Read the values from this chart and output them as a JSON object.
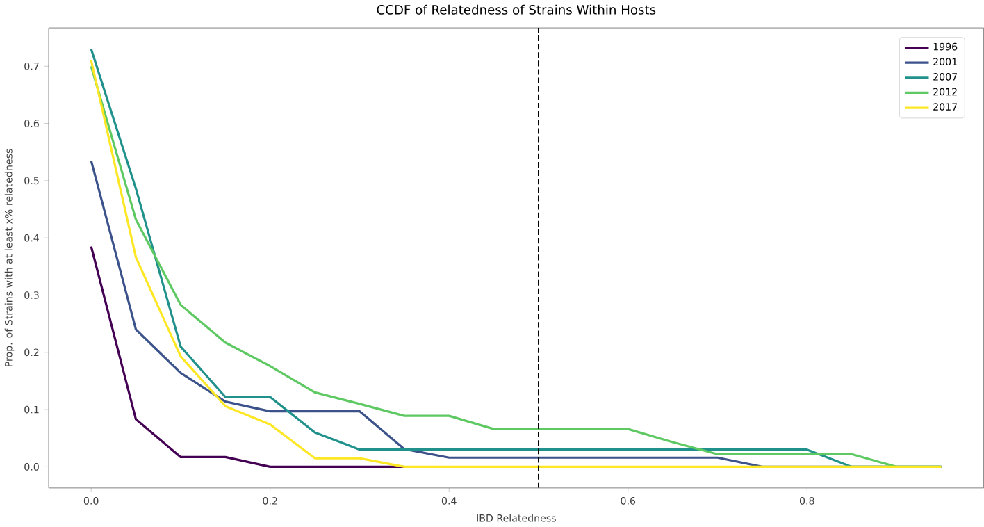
{
  "chart_data": {
    "type": "line",
    "title": "CCDF of Relatedness of Strains Within Hosts",
    "xlabel": "IBD Relatedness",
    "ylabel": "Prop. of Strains with at least x% relatedness",
    "x": [
      0,
      0.05,
      0.1,
      0.15,
      0.2,
      0.25,
      0.3,
      0.35,
      0.4,
      0.45,
      0.5,
      0.55,
      0.6,
      0.65,
      0.7,
      0.75,
      0.8,
      0.85,
      0.9,
      0.95
    ],
    "series": [
      {
        "name": "1996",
        "color": "#440154",
        "values": [
          0.385,
          0.083,
          0.017,
          0.017,
          0,
          0,
          0,
          0,
          null,
          null,
          null,
          null,
          null,
          null,
          null,
          null,
          null,
          null,
          null,
          null
        ]
      },
      {
        "name": "2001",
        "color": "#3b528b",
        "values": [
          0.535,
          0.24,
          0.164,
          0.114,
          0.097,
          0.097,
          0.097,
          0.031,
          0.016,
          0.016,
          0.016,
          0.016,
          0.016,
          0.016,
          0.016,
          0,
          0,
          0,
          0,
          0
        ]
      },
      {
        "name": "2007",
        "color": "#21918c",
        "values": [
          0.73,
          0.486,
          0.21,
          0.122,
          0.122,
          0.06,
          0.03,
          0.03,
          0.03,
          0.03,
          0.03,
          0.03,
          0.03,
          0.03,
          0.03,
          0.03,
          0.03,
          0,
          0,
          0
        ]
      },
      {
        "name": "2012",
        "color": "#5ec962",
        "values": [
          0.7,
          0.432,
          0.283,
          0.217,
          0.176,
          0.13,
          0.11,
          0.089,
          0.089,
          0.066,
          0.066,
          0.066,
          0.066,
          0.043,
          0.022,
          0.022,
          0.022,
          0.022,
          0,
          0
        ]
      },
      {
        "name": "2017",
        "color": "#fde725",
        "values": [
          0.71,
          0.366,
          0.193,
          0.106,
          0.074,
          0.015,
          0.015,
          0,
          0,
          0,
          0,
          0,
          0,
          0,
          0,
          0,
          0,
          0,
          0,
          0
        ]
      }
    ],
    "xlim": [
      -0.0475,
      0.9975
    ],
    "ylim": [
      -0.037,
      0.767
    ],
    "xticks": [
      {
        "value": 0,
        "label": "0.0"
      },
      0.2,
      0.4,
      0.6,
      0.8
    ],
    "yticks": [
      {
        "value": 0,
        "label": "0.0"
      },
      0.1,
      0.2,
      0.3,
      0.4,
      0.5,
      0.6,
      0.7
    ],
    "ref_lines": [
      {
        "axis": "x",
        "value": 0.5,
        "color": "#000000",
        "line_style": "dashed"
      }
    ],
    "legend": "top right",
    "grid": false,
    "marker": "none",
    "line_style": "solid"
  }
}
